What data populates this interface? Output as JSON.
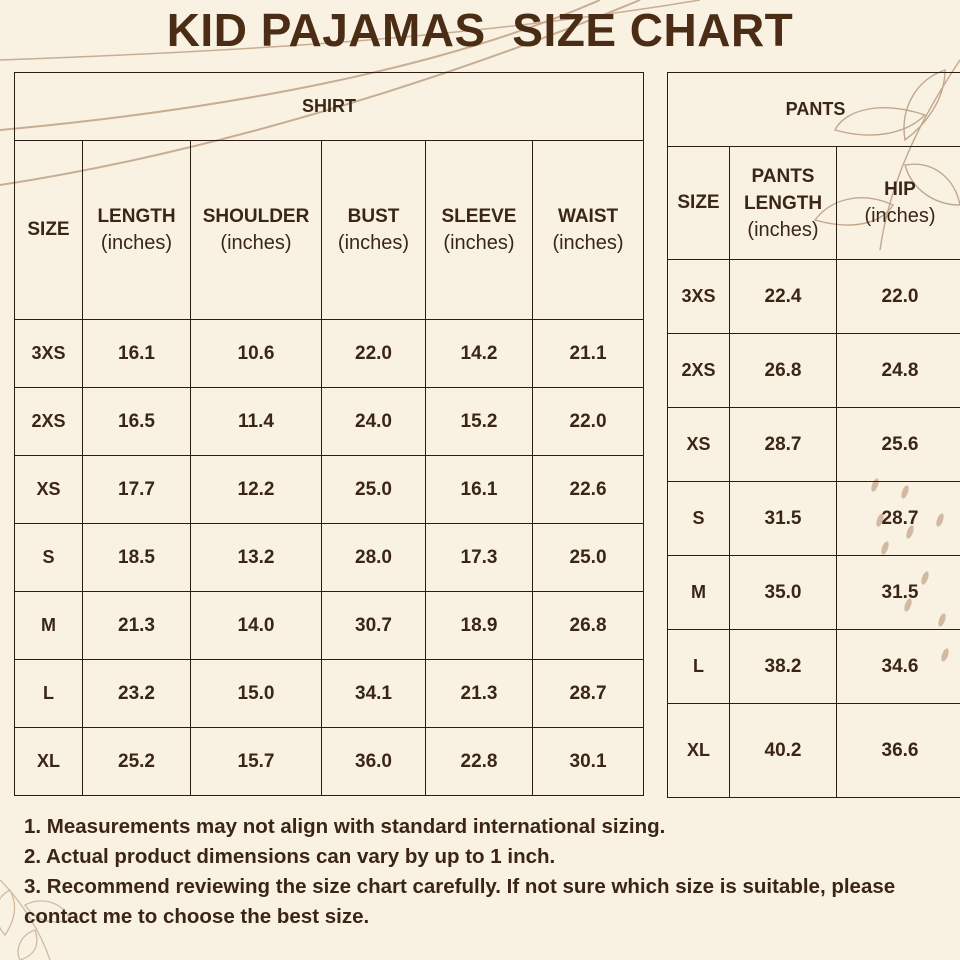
{
  "title": "KID PAJAMAS  SIZE CHART",
  "shirt": {
    "group_label": "SHIRT",
    "size_header": "SIZE",
    "columns": [
      {
        "name": "LENGTH",
        "unit": "(inches)"
      },
      {
        "name": "SHOULDER",
        "unit": "(inches)"
      },
      {
        "name": "BUST",
        "unit": "(inches)"
      },
      {
        "name": "SLEEVE",
        "unit": "(inches)"
      },
      {
        "name": "WAIST",
        "unit": "(inches)"
      }
    ],
    "rows": [
      {
        "size": "3XS",
        "values": [
          "16.1",
          "10.6",
          "22.0",
          "14.2",
          "21.1"
        ]
      },
      {
        "size": "2XS",
        "values": [
          "16.5",
          "11.4",
          "24.0",
          "15.2",
          "22.0"
        ]
      },
      {
        "size": "XS",
        "values": [
          "17.7",
          "12.2",
          "25.0",
          "16.1",
          "22.6"
        ]
      },
      {
        "size": "S",
        "values": [
          "18.5",
          "13.2",
          "28.0",
          "17.3",
          "25.0"
        ]
      },
      {
        "size": "M",
        "values": [
          "21.3",
          "14.0",
          "30.7",
          "18.9",
          "26.8"
        ]
      },
      {
        "size": "L",
        "values": [
          "23.2",
          "15.0",
          "34.1",
          "21.3",
          "28.7"
        ]
      },
      {
        "size": "XL",
        "values": [
          "25.2",
          "15.7",
          "36.0",
          "22.8",
          "30.1"
        ]
      }
    ]
  },
  "pants": {
    "group_label": "PANTS",
    "size_header": "SIZE",
    "columns": [
      {
        "name": "PANTS LENGTH",
        "name_line1": "PANTS",
        "name_line2": "LENGTH",
        "unit": "(inches)"
      },
      {
        "name": "HIP",
        "unit": "(inches)"
      }
    ],
    "rows": [
      {
        "size": "3XS",
        "values": [
          "22.4",
          "22.0"
        ]
      },
      {
        "size": "2XS",
        "values": [
          "26.8",
          "24.8"
        ]
      },
      {
        "size": "XS",
        "values": [
          "28.7",
          "25.6"
        ]
      },
      {
        "size": "S",
        "values": [
          "31.5",
          "28.7"
        ]
      },
      {
        "size": "M",
        "values": [
          "35.0",
          "31.5"
        ]
      },
      {
        "size": "L",
        "values": [
          "38.2",
          "34.6"
        ]
      },
      {
        "size": "XL",
        "values": [
          "40.2",
          "36.6"
        ]
      }
    ]
  },
  "notes": [
    "1. Measurements may not align with standard international sizing.",
    "2. Actual product dimensions can vary by up to 1 inch.",
    "3. Recommend reviewing the size chart carefully. If not sure which size is suitable, please contact me to choose the best size."
  ],
  "colors": {
    "background": "#f9f2e3",
    "text": "#3b2616",
    "title": "#4a2d14",
    "border": "#2b1d12",
    "decoration": "#c9ad92"
  }
}
